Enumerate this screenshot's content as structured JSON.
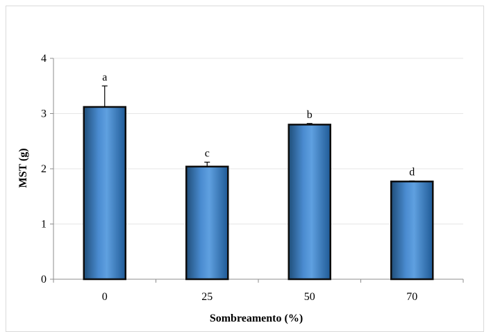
{
  "chart_data": {
    "type": "bar",
    "categories": [
      "0",
      "25",
      "50",
      "70"
    ],
    "values": [
      3.12,
      2.04,
      2.8,
      1.77
    ],
    "error_bars": [
      0.38,
      0.08,
      0.02,
      0.01
    ],
    "significance_letters": [
      "a",
      "c",
      "b",
      "d"
    ],
    "xlabel": "Sombreamento (%)",
    "ylabel": "MST (g)",
    "ylim": [
      0,
      4
    ],
    "y_ticks": [
      0,
      1,
      2,
      3,
      4
    ],
    "grid": true,
    "legend": "none",
    "colors": {
      "bar_fill": "#2E75B6",
      "bar_highlight": "#5B9BD5",
      "bar_edge": "#0d0d0d",
      "grid": "#e6e6e6",
      "axis": "#8c8c8c"
    }
  }
}
